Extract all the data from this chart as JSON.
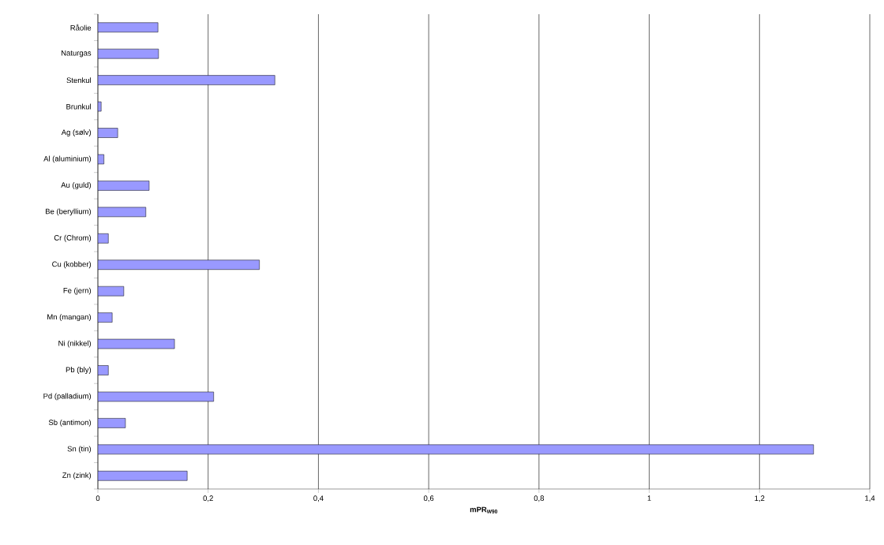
{
  "chart_data": {
    "type": "bar",
    "orientation": "horizontal",
    "xlabel": "mPR$_{W90}$",
    "categories": [
      "Råolie",
      "Naturgas",
      "Stenkul",
      "Brunkul",
      "Ag (sølv)",
      "Al (aluminium)",
      "Au (guld)",
      "Be (beryllium)",
      "Cr (Chrom)",
      "Cu (kobber)",
      "Fe (jern)",
      "Mn (mangan)",
      "Ni (nikkel)",
      "Pb (bly)",
      "Pd (palladium)",
      "Sb (antimon)",
      "Sn (tin)",
      "Zn (zink)"
    ],
    "values": [
      0.109,
      0.11,
      0.321,
      0.006,
      0.036,
      0.011,
      0.093,
      0.087,
      0.019,
      0.293,
      0.047,
      0.026,
      0.139,
      0.019,
      0.21,
      0.05,
      1.298,
      0.162
    ],
    "color": "#9999ff",
    "xlim": [
      0,
      1.4
    ],
    "xticks": [
      0,
      {
        "value": 0.2,
        "label": "0,2"
      },
      {
        "value": 0.4,
        "label": "0,4"
      },
      {
        "value": 0.6,
        "label": "0,6"
      },
      {
        "value": 0.8,
        "label": "0,8"
      },
      1,
      {
        "value": 1.2,
        "label": "1,2"
      },
      {
        "value": 1.4,
        "label": "1,4"
      }
    ],
    "grid": "x"
  }
}
